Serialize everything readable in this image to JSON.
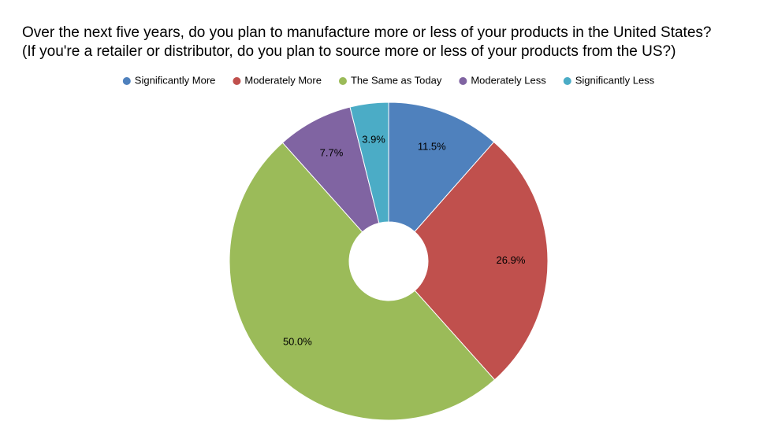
{
  "chart_data": {
    "type": "donut",
    "title": [
      "Over the next five years, do you plan to manufacture more or less of your products in the United States?",
      "(If you're a retailer or distributor, do you plan to source more or less of your products from the US?)"
    ],
    "categories": [
      "Significantly More",
      "Moderately More",
      "The Same as Today",
      "Moderately Less",
      "Significantly Less"
    ],
    "values": [
      11.5,
      26.9,
      50.0,
      7.7,
      3.9
    ],
    "value_labels": [
      "11.5%",
      "26.9%",
      "50.0%",
      "7.7%",
      "3.9%"
    ],
    "colors": [
      "#4f81bd",
      "#c0504d",
      "#9bbb59",
      "#8064a2",
      "#4bacc6"
    ],
    "legend": "top"
  }
}
